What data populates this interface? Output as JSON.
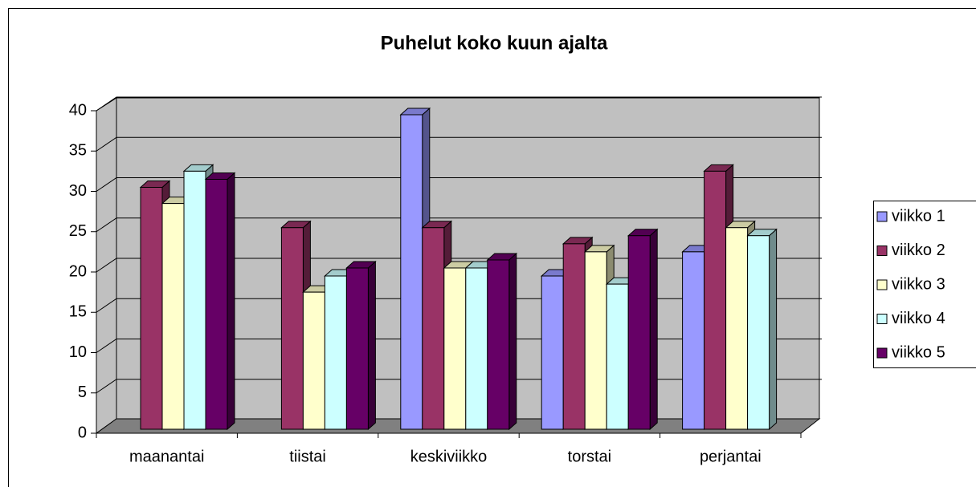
{
  "chart_data": {
    "type": "bar",
    "title": "Puhelut koko kuun ajalta",
    "categories": [
      "maanantai",
      "tiistai",
      "keskiviikko",
      "torstai",
      "perjantai"
    ],
    "series": [
      {
        "name": "viikko 1",
        "color": "#9999ff",
        "values": [
          null,
          null,
          39,
          19,
          22
        ]
      },
      {
        "name": "viikko 2",
        "color": "#993366",
        "values": [
          30,
          25,
          25,
          23,
          32
        ]
      },
      {
        "name": "viikko 3",
        "color": "#ffffcc",
        "values": [
          28,
          17,
          20,
          22,
          25
        ]
      },
      {
        "name": "viikko 4",
        "color": "#ccffff",
        "values": [
          32,
          19,
          20,
          18,
          24
        ]
      },
      {
        "name": "viikko 5",
        "color": "#660066",
        "values": [
          31,
          20,
          21,
          24,
          null
        ]
      }
    ],
    "ylim": [
      0,
      40
    ],
    "yticks": [
      0,
      5,
      10,
      15,
      20,
      25,
      30,
      35,
      40
    ],
    "grid": true,
    "legend": "right"
  }
}
